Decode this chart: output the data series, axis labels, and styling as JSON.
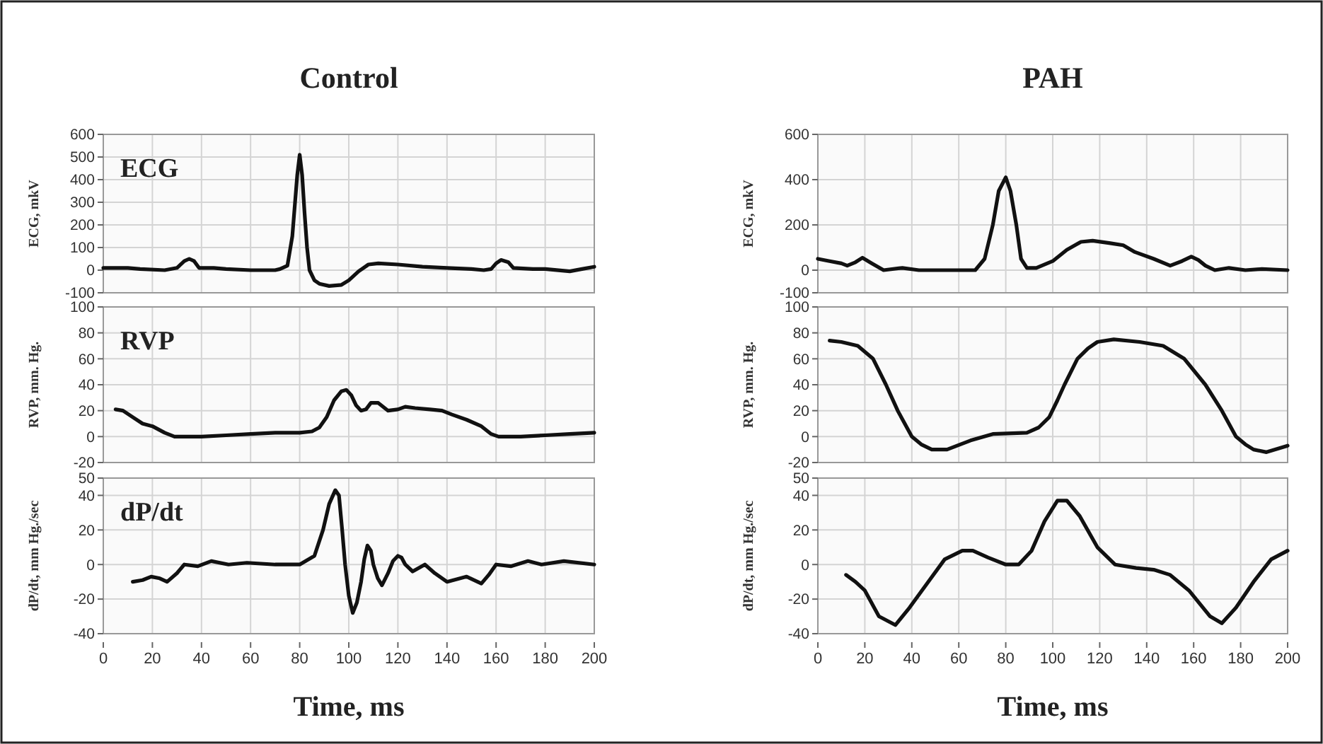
{
  "chart_data": [
    {
      "type": "line",
      "title": "Control",
      "ylabel": "ECG, mkV",
      "annotations": [
        "ECG"
      ],
      "xlim": [
        0,
        200
      ],
      "xticks": [
        0,
        20,
        40,
        60,
        80,
        100,
        120,
        140,
        160,
        180,
        200
      ],
      "ylim": [
        -100,
        600
      ],
      "yticks": [
        -100,
        0,
        100,
        200,
        300,
        400,
        500,
        600
      ],
      "grid": true,
      "tick_labels": "y",
      "series": [
        {
          "color": "#111111",
          "x": [
            0,
            10,
            15,
            25,
            30,
            33,
            35,
            37,
            39,
            45,
            50,
            60,
            70,
            72,
            75,
            77,
            79,
            80,
            81,
            82,
            83,
            84,
            86,
            88,
            92,
            97,
            100,
            104,
            108,
            112,
            120,
            130,
            140,
            150,
            155,
            158,
            160,
            162,
            165,
            167,
            175,
            180,
            190,
            195,
            200
          ],
          "values": [
            10,
            10,
            5,
            0,
            10,
            40,
            50,
            40,
            10,
            10,
            5,
            0,
            0,
            5,
            20,
            150,
            420,
            510,
            420,
            250,
            100,
            0,
            -45,
            -60,
            -70,
            -65,
            -45,
            -5,
            25,
            30,
            25,
            15,
            10,
            5,
            0,
            5,
            30,
            45,
            35,
            10,
            5,
            5,
            -5,
            5,
            15
          ]
        }
      ]
    },
    {
      "type": "line",
      "title": "PAH",
      "ylabel": "ECG, mkV",
      "xlim": [
        0,
        200
      ],
      "xticks": [
        0,
        20,
        40,
        60,
        80,
        100,
        120,
        140,
        160,
        180,
        200
      ],
      "ylim": [
        -100,
        600
      ],
      "yticks": [
        -100,
        0,
        200,
        400,
        600
      ],
      "grid": true,
      "tick_labels": "y",
      "series": [
        {
          "color": "#111111",
          "x": [
            0,
            5,
            10,
            12.5,
            16,
            19,
            23,
            28,
            36,
            43,
            55,
            65,
            67,
            71,
            74.5,
            77,
            80,
            82,
            84.5,
            86.5,
            89,
            93,
            100,
            106,
            112,
            117,
            124,
            130,
            135,
            143,
            150,
            155,
            159,
            162,
            165,
            169,
            175,
            182,
            189,
            200
          ],
          "values": [
            50,
            40,
            30,
            20,
            35,
            55,
            30,
            0,
            10,
            0,
            0,
            0,
            0,
            50,
            200,
            350,
            410,
            350,
            200,
            50,
            10,
            10,
            40,
            90,
            125,
            130,
            120,
            110,
            80,
            50,
            20,
            40,
            60,
            45,
            20,
            0,
            10,
            0,
            5,
            0
          ]
        }
      ]
    },
    {
      "type": "line",
      "ylabel": "RVP, mm. Hg.",
      "annotations": [
        "RVP"
      ],
      "xlim": [
        0,
        200
      ],
      "xticks": [
        0,
        20,
        40,
        60,
        80,
        100,
        120,
        140,
        160,
        180,
        200
      ],
      "ylim": [
        -20,
        100
      ],
      "yticks": [
        -20,
        0,
        20,
        40,
        60,
        80,
        100
      ],
      "grid": true,
      "tick_labels": "y",
      "series": [
        {
          "color": "#111111",
          "x": [
            5,
            8,
            12,
            16,
            20,
            25,
            29,
            40,
            50,
            60,
            70,
            80,
            85,
            88,
            91,
            94,
            97,
            99,
            101,
            103,
            105,
            107,
            109,
            112,
            114,
            116,
            120,
            123,
            127,
            133,
            138,
            142,
            148,
            154,
            158,
            161,
            170,
            180,
            190,
            200
          ],
          "values": [
            21,
            20,
            15,
            10,
            8,
            3,
            0,
            0,
            1,
            2,
            3,
            3,
            4,
            7,
            15,
            28,
            35,
            36,
            32,
            24,
            20,
            21,
            26,
            26,
            23,
            20,
            21,
            23,
            22,
            21,
            20,
            17,
            13,
            8,
            2,
            0,
            0,
            1,
            2,
            3
          ]
        }
      ]
    },
    {
      "type": "line",
      "ylabel": "RVP, mm. Hg.",
      "xlim": [
        0,
        200
      ],
      "xticks": [
        0,
        20,
        40,
        60,
        80,
        100,
        120,
        140,
        160,
        180,
        200
      ],
      "ylim": [
        -20,
        100
      ],
      "yticks": [
        -20,
        0,
        20,
        40,
        60,
        80,
        100
      ],
      "grid": true,
      "tick_labels": "y",
      "series": [
        {
          "color": "#111111",
          "x": [
            5,
            10,
            17,
            23.5,
            29,
            34,
            40,
            44,
            48.5,
            55,
            65,
            74.5,
            89,
            94,
            98.5,
            102,
            105,
            110.5,
            115,
            119,
            126,
            137,
            147,
            156,
            165,
            172,
            178,
            182,
            185.5,
            191,
            200
          ],
          "values": [
            74,
            73,
            70,
            60,
            40,
            20,
            0,
            -6,
            -10,
            -10,
            -3,
            2,
            3,
            7,
            15,
            28,
            40,
            60,
            68,
            73,
            75,
            73,
            70,
            60,
            40,
            20,
            0,
            -6,
            -10,
            -12,
            -7
          ]
        }
      ]
    },
    {
      "type": "line",
      "ylabel": "dP/dt, mm Hg./sec",
      "xlabel": "Time, ms",
      "annotations": [
        "dP/dt"
      ],
      "xlim": [
        0,
        200
      ],
      "xticks": [
        0,
        20,
        40,
        60,
        80,
        100,
        120,
        140,
        160,
        180,
        200
      ],
      "ylim": [
        -40,
        50
      ],
      "yticks": [
        -40,
        -20,
        0,
        20,
        40,
        50
      ],
      "grid": true,
      "series": [
        {
          "color": "#111111",
          "x": [
            12,
            16,
            19.5,
            23,
            26,
            30,
            33,
            38.5,
            44,
            51,
            58.5,
            70,
            80,
            86,
            89.5,
            92,
            94.5,
            96,
            97.3,
            98.5,
            100,
            101.6,
            103.3,
            105,
            106.3,
            107.6,
            109,
            110,
            111.8,
            113.5,
            116,
            118,
            120,
            121.5,
            123,
            126,
            131,
            135,
            140,
            148,
            154,
            157,
            160,
            166,
            173,
            178.5,
            187.6,
            200
          ],
          "values": [
            -10,
            -9,
            -7,
            -8,
            -10,
            -5,
            0,
            -1,
            2,
            0,
            1,
            0,
            0,
            5,
            20,
            35,
            43,
            40,
            20,
            0,
            -18,
            -28,
            -22,
            -10,
            3,
            11,
            8,
            0,
            -8,
            -12,
            -5,
            2,
            5,
            4,
            0,
            -4,
            0,
            -5,
            -10,
            -7,
            -11,
            -6,
            0,
            -1,
            2,
            0,
            2,
            0
          ]
        }
      ]
    },
    {
      "type": "line",
      "ylabel": "dP/dt, mm Hg./sec",
      "xlabel": "Time, ms",
      "xlim": [
        0,
        200
      ],
      "xticks": [
        0,
        20,
        40,
        60,
        80,
        100,
        120,
        140,
        160,
        180,
        200
      ],
      "ylim": [
        -40,
        50
      ],
      "yticks": [
        -40,
        -20,
        0,
        20,
        40,
        50
      ],
      "grid": true,
      "series": [
        {
          "color": "#111111",
          "x": [
            12,
            16,
            20,
            26,
            33,
            39,
            47,
            54,
            61.5,
            66,
            72.5,
            80,
            85.5,
            91,
            96.5,
            102,
            106,
            111.5,
            119,
            126.5,
            135.5,
            143,
            150,
            158,
            167,
            172,
            178,
            185.5,
            193,
            200
          ],
          "values": [
            -6,
            -10,
            -15,
            -30,
            -35,
            -25,
            -10,
            3,
            8,
            8,
            4,
            0,
            0,
            8,
            25,
            37,
            37,
            28,
            10,
            0,
            -2,
            -3,
            -6,
            -15,
            -30,
            -34,
            -25,
            -10,
            3,
            8
          ]
        }
      ]
    }
  ]
}
